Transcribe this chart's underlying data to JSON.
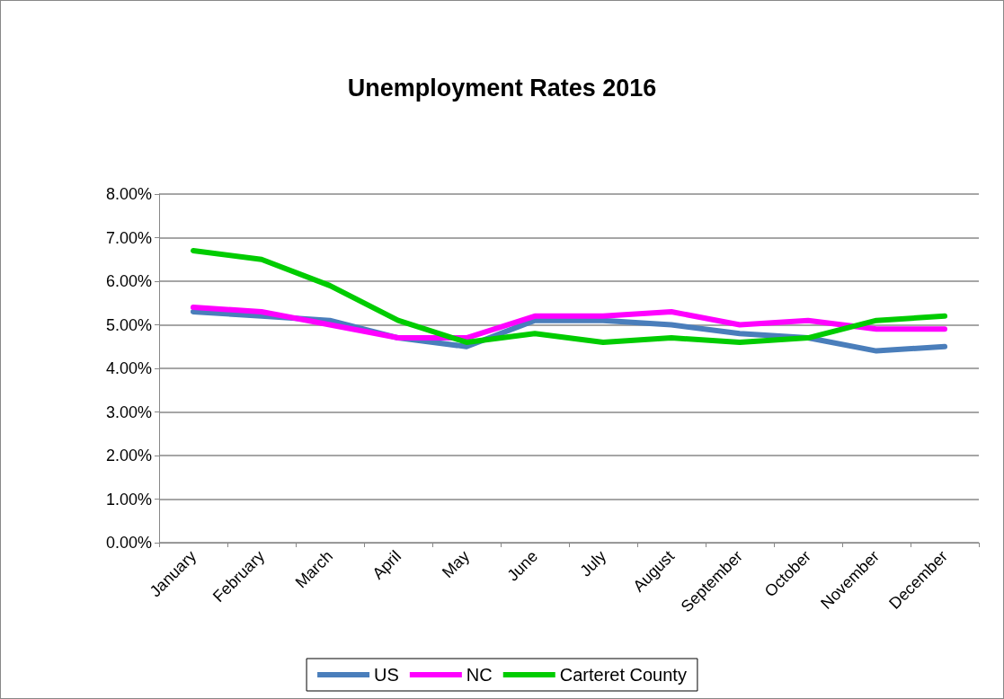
{
  "chart_data": {
    "type": "line",
    "title": "Unemployment Rates 2016",
    "categories": [
      "January",
      "February",
      "March",
      "April",
      "May",
      "June",
      "July",
      "August",
      "September",
      "October",
      "November",
      "December"
    ],
    "series": [
      {
        "name": "US",
        "color": "#4a7ebb",
        "values": [
          5.3,
          5.2,
          5.1,
          4.7,
          4.5,
          5.1,
          5.1,
          5.0,
          4.8,
          4.7,
          4.4,
          4.5
        ]
      },
      {
        "name": "NC",
        "color": "#ff00ff",
        "values": [
          5.4,
          5.3,
          5.0,
          4.7,
          4.7,
          5.2,
          5.2,
          5.3,
          5.0,
          5.1,
          4.9,
          4.9
        ]
      },
      {
        "name": "Carteret County",
        "color": "#00cc00",
        "values": [
          6.7,
          6.5,
          5.9,
          5.1,
          4.6,
          4.8,
          4.6,
          4.7,
          4.6,
          4.7,
          5.1,
          5.2
        ]
      }
    ],
    "ylim": [
      0,
      8
    ],
    "yticks": [
      {
        "value": 0,
        "label": "0.00%"
      },
      {
        "value": 1,
        "label": "1.00%"
      },
      {
        "value": 2,
        "label": "2.00%"
      },
      {
        "value": 3,
        "label": "3.00%"
      },
      {
        "value": 4,
        "label": "4.00%"
      },
      {
        "value": 5,
        "label": "5.00%"
      },
      {
        "value": 6,
        "label": "6.00%"
      },
      {
        "value": 7,
        "label": "7.00%"
      },
      {
        "value": 8,
        "label": "8.00%"
      }
    ],
    "grid": "y",
    "legend": "bottom",
    "marker": "none",
    "line_style": "solid"
  }
}
